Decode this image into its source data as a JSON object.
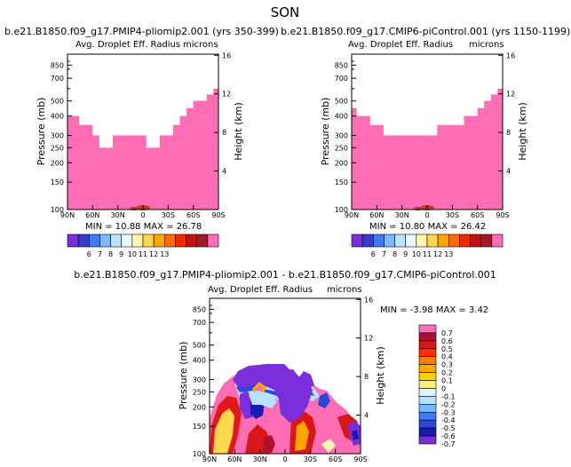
{
  "page_title": "SON",
  "diff_title": "b.e21.B1850.f09_g17.PMIP4-pliomip2.001 - b.e21.B1850.f09_g17.CMIP6-piControl.001",
  "colors": {
    "pink": "#ff6eb4",
    "dark_red": "#c0392b",
    "frame": "#000000"
  },
  "chart_data": [
    {
      "type": "heatmap",
      "run_title": "b.e21.B1850.f09_g17.PMIP4-pliomip2.001 (yrs 350-399)",
      "title": "Avg. Droplet Eff. Radius",
      "units": "microns",
      "ylabel": "Pressure (mb)",
      "ylabel_right": "Height (km)",
      "x_ticks": [
        "90N",
        "60N",
        "30N",
        "0",
        "30S",
        "60S",
        "90S"
      ],
      "y_ticks": [
        "100",
        "150",
        "200",
        "250",
        "300",
        "400",
        "500",
        "700",
        "850"
      ],
      "y_ticks_right": [
        "16",
        "12",
        "8",
        "4"
      ],
      "ylim": [
        1000,
        100
      ],
      "stats": "MIN = 10.88 MAX = 26.78",
      "colorbar_labels": [
        "6",
        "7",
        "8",
        "9",
        "10",
        "11",
        "12",
        "13"
      ],
      "colorbar_colors": [
        "#7b2fdc",
        "#3a3ac8",
        "#3c7bf0",
        "#7fb8ff",
        "#b9e4ff",
        "#e8faff",
        "#fff7b0",
        "#ffd84d",
        "#ffa500",
        "#ff6a00",
        "#f02a00",
        "#c01010",
        "#a01830",
        "#ff6eb4"
      ],
      "cloud_top_pressure_mb": [
        400,
        400,
        350,
        350,
        300,
        250,
        250,
        300,
        300,
        300,
        300,
        300,
        250,
        250,
        300,
        300,
        350,
        400,
        450,
        500,
        500,
        550,
        600
      ],
      "lat_edges": [
        90,
        84,
        76,
        68,
        60,
        52,
        44,
        36,
        28,
        20,
        12,
        4,
        -4,
        -12,
        -20,
        -28,
        -36,
        -44,
        -52,
        -60,
        -68,
        -76,
        -84,
        -90
      ]
    },
    {
      "type": "heatmap",
      "run_title": "b.e21.B1850.f09_g17.CMIP6-piControl.001 (yrs 1150-1199)",
      "title": "Avg. Droplet Eff. Radius",
      "units": "microns",
      "ylabel": "Pressure (mb)",
      "ylabel_right": "Height (km)",
      "x_ticks": [
        "90N",
        "60N",
        "30N",
        "0",
        "30S",
        "60S",
        "90S"
      ],
      "y_ticks": [
        "100",
        "150",
        "200",
        "250",
        "300",
        "400",
        "500",
        "700",
        "850"
      ],
      "y_ticks_right": [
        "16",
        "12",
        "8",
        "4"
      ],
      "ylim": [
        1000,
        100
      ],
      "stats": "MIN = 10.80 MAX = 26.42",
      "colorbar_labels": [
        "6",
        "7",
        "8",
        "9",
        "10",
        "11",
        "12",
        "13"
      ],
      "colorbar_colors": [
        "#7b2fdc",
        "#3a3ac8",
        "#3c7bf0",
        "#7fb8ff",
        "#b9e4ff",
        "#e8faff",
        "#fff7b0",
        "#ffd84d",
        "#ffa500",
        "#ff6a00",
        "#f02a00",
        "#c01010",
        "#a01830",
        "#ff6eb4"
      ],
      "cloud_top_pressure_mb": [
        450,
        400,
        400,
        350,
        350,
        300,
        300,
        300,
        300,
        300,
        300,
        300,
        300,
        350,
        350,
        350,
        350,
        400,
        400,
        450,
        500,
        550,
        600
      ],
      "lat_edges": [
        90,
        84,
        76,
        68,
        60,
        52,
        44,
        36,
        28,
        20,
        12,
        4,
        -4,
        -12,
        -20,
        -28,
        -36,
        -44,
        -52,
        -60,
        -68,
        -76,
        -84,
        -90
      ]
    },
    {
      "type": "heatmap",
      "title": "Avg. Droplet Eff. Radius",
      "units": "microns",
      "ylabel": "Pressure (mb)",
      "ylabel_right": "Height (km)",
      "x_ticks": [
        "90N",
        "60N",
        "30N",
        "0",
        "30S",
        "60S",
        "90S"
      ],
      "y_ticks": [
        "100",
        "150",
        "200",
        "250",
        "300",
        "400",
        "500",
        "700",
        "850"
      ],
      "y_ticks_right": [
        "16",
        "12",
        "8",
        "4"
      ],
      "ylim": [
        1000,
        100
      ],
      "stats": "MIN = -3.98 MAX = 3.42",
      "colorbar_labels": [
        "0.7",
        "0.6",
        "0.5",
        "0.4",
        "0.3",
        "0.2",
        "0.1",
        "0",
        "-0.1",
        "-0.2",
        "-0.3",
        "-0.4",
        "-0.5",
        "-0.6",
        "-0.7"
      ],
      "colorbar_colors": [
        "#ff6eb4",
        "#b01030",
        "#d81818",
        "#ff3000",
        "#ff7a00",
        "#ffa600",
        "#ffd000",
        "#ffef80",
        "#e0f6ff",
        "#b8e0ff",
        "#78b8ff",
        "#3c7cf0",
        "#2a48d8",
        "#1a1ab0",
        "#7b2fdc"
      ]
    }
  ]
}
